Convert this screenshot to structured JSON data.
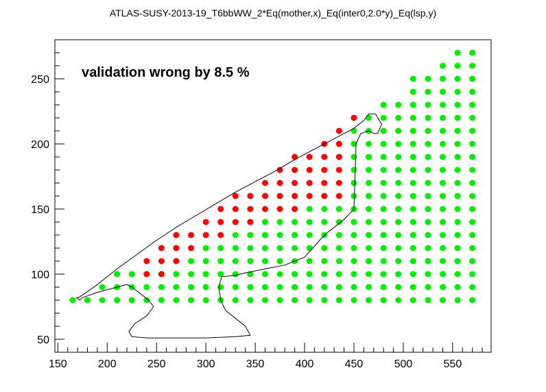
{
  "chart_data": {
    "type": "scatter",
    "title": "ATLAS-SUSY-2013-19_T6bbWW_2*Eq(mother,x)_Eq(inter0,2.0*y)_Eq(lsp,y)",
    "annotation": "validation wrong by 8.5 %",
    "xlabel": "",
    "ylabel": "",
    "xlim": [
      147,
      589
    ],
    "ylim": [
      40,
      280
    ],
    "xticks": [
      150,
      200,
      250,
      300,
      350,
      400,
      450,
      500,
      550
    ],
    "yticks": [
      50,
      100,
      150,
      200,
      250
    ],
    "grid": false,
    "colors": {
      "excluded": "#ff0000",
      "allowed": "#00ee00",
      "contour": "#000000"
    },
    "columns": [
      {
        "x": 165,
        "red": [],
        "green": [
          80
        ]
      },
      {
        "x": 180,
        "red": [],
        "green": [
          80
        ]
      },
      {
        "x": 195,
        "red": [],
        "green": [
          80,
          90
        ]
      },
      {
        "x": 210,
        "red": [],
        "green": [
          80,
          90,
          100
        ]
      },
      {
        "x": 225,
        "red": [],
        "green": [
          80,
          90,
          100
        ]
      },
      {
        "x": 240,
        "red": [
          100,
          110
        ],
        "green": [
          80,
          90
        ]
      },
      {
        "x": 255,
        "red": [
          100,
          110,
          120
        ],
        "green": [
          80,
          90
        ]
      },
      {
        "x": 270,
        "red": [
          110,
          120,
          130
        ],
        "green": [
          80,
          90,
          100
        ]
      },
      {
        "x": 285,
        "red": [
          120,
          130
        ],
        "green": [
          80,
          90,
          100,
          110
        ]
      },
      {
        "x": 300,
        "red": [
          130,
          140
        ],
        "green": [
          80,
          90,
          100,
          110,
          120
        ]
      },
      {
        "x": 315,
        "red": [
          130,
          140,
          150
        ],
        "green": [
          80,
          90,
          100,
          110,
          120
        ]
      },
      {
        "x": 330,
        "red": [
          140,
          150,
          160
        ],
        "green": [
          80,
          90,
          100,
          110,
          120,
          130
        ]
      },
      {
        "x": 345,
        "red": [
          140,
          150,
          160
        ],
        "green": [
          80,
          90,
          100,
          110,
          120,
          130
        ]
      },
      {
        "x": 360,
        "red": [
          150,
          160,
          170
        ],
        "green": [
          80,
          90,
          100,
          110,
          120,
          130,
          140
        ]
      },
      {
        "x": 375,
        "red": [
          150,
          160,
          170,
          180
        ],
        "green": [
          80,
          90,
          100,
          110,
          120,
          130,
          140
        ]
      },
      {
        "x": 390,
        "red": [
          150,
          160,
          170,
          180,
          190
        ],
        "green": [
          80,
          90,
          100,
          110,
          120,
          130,
          140
        ]
      },
      {
        "x": 405,
        "red": [
          160,
          170,
          180,
          190
        ],
        "green": [
          80,
          90,
          100,
          110,
          120,
          130,
          140,
          150
        ]
      },
      {
        "x": 420,
        "red": [
          160,
          170,
          180,
          190,
          200
        ],
        "green": [
          80,
          90,
          100,
          110,
          120,
          130,
          140,
          150
        ]
      },
      {
        "x": 435,
        "red": [
          160,
          170,
          180,
          190,
          200,
          210
        ],
        "green": [
          80,
          90,
          100,
          110,
          120,
          130,
          140,
          150
        ]
      },
      {
        "x": 450,
        "red": [
          220
        ],
        "green": [
          80,
          90,
          100,
          110,
          120,
          130,
          140,
          150,
          160,
          170,
          180,
          190,
          200,
          210
        ]
      },
      {
        "x": 465,
        "red": [],
        "green": [
          80,
          90,
          100,
          110,
          120,
          130,
          140,
          150,
          160,
          170,
          180,
          190,
          200,
          210,
          220
        ]
      },
      {
        "x": 480,
        "red": [],
        "green": [
          80,
          90,
          100,
          110,
          120,
          130,
          140,
          150,
          160,
          170,
          180,
          190,
          200,
          210,
          220,
          230
        ]
      },
      {
        "x": 495,
        "red": [],
        "green": [
          80,
          90,
          100,
          110,
          120,
          130,
          140,
          150,
          160,
          170,
          180,
          190,
          200,
          210,
          220,
          230
        ]
      },
      {
        "x": 510,
        "red": [],
        "green": [
          80,
          90,
          100,
          110,
          120,
          130,
          140,
          150,
          160,
          170,
          180,
          190,
          200,
          210,
          220,
          230,
          240,
          250
        ]
      },
      {
        "x": 525,
        "red": [],
        "green": [
          80,
          90,
          100,
          110,
          120,
          130,
          140,
          150,
          160,
          170,
          180,
          190,
          200,
          210,
          220,
          230,
          240,
          250
        ]
      },
      {
        "x": 540,
        "red": [],
        "green": [
          80,
          90,
          100,
          110,
          120,
          130,
          140,
          150,
          160,
          170,
          180,
          190,
          200,
          210,
          220,
          230,
          240,
          250,
          260
        ]
      },
      {
        "x": 555,
        "red": [],
        "green": [
          80,
          90,
          100,
          110,
          120,
          130,
          140,
          150,
          160,
          170,
          180,
          190,
          200,
          210,
          220,
          230,
          240,
          250,
          260,
          270
        ]
      },
      {
        "x": 570,
        "red": [],
        "green": [
          80,
          90,
          100,
          110,
          120,
          130,
          140,
          150,
          160,
          170,
          180,
          190,
          200,
          210,
          220,
          230,
          240,
          250,
          260,
          270
        ]
      }
    ],
    "exclusion_contour": [
      [
        171,
        82
      ],
      [
        175,
        84
      ],
      [
        190,
        92
      ],
      [
        210,
        104
      ],
      [
        230,
        115
      ],
      [
        250,
        126
      ],
      [
        270,
        136
      ],
      [
        290,
        145
      ],
      [
        310,
        154
      ],
      [
        330,
        163
      ],
      [
        350,
        171
      ],
      [
        370,
        179
      ],
      [
        390,
        188
      ],
      [
        410,
        196
      ],
      [
        430,
        204
      ],
      [
        450,
        212
      ],
      [
        460,
        218
      ],
      [
        465,
        223
      ],
      [
        472,
        223
      ],
      [
        478,
        215
      ],
      [
        474,
        208
      ],
      [
        470,
        208
      ],
      [
        465,
        210
      ],
      [
        457,
        208
      ],
      [
        452,
        200
      ],
      [
        452,
        195
      ],
      [
        450,
        150
      ],
      [
        440,
        142
      ],
      [
        420,
        130
      ],
      [
        400,
        113
      ],
      [
        380,
        107
      ],
      [
        360,
        104
      ],
      [
        340,
        101
      ],
      [
        330,
        99
      ],
      [
        316,
        98
      ],
      [
        313,
        90
      ],
      [
        315,
        80
      ],
      [
        320,
        72
      ],
      [
        340,
        60
      ],
      [
        345,
        53
      ],
      [
        330,
        52
      ],
      [
        300,
        51
      ],
      [
        270,
        51
      ],
      [
        240,
        51
      ],
      [
        225,
        52
      ],
      [
        222,
        56
      ],
      [
        228,
        62
      ],
      [
        240,
        68
      ],
      [
        247,
        75
      ],
      [
        242,
        80
      ],
      [
        232,
        86
      ],
      [
        225,
        90
      ],
      [
        220,
        92
      ],
      [
        210,
        90
      ],
      [
        190,
        86
      ],
      [
        175,
        82
      ],
      [
        172,
        80
      ],
      [
        169,
        82
      ],
      [
        171,
        82
      ]
    ]
  }
}
